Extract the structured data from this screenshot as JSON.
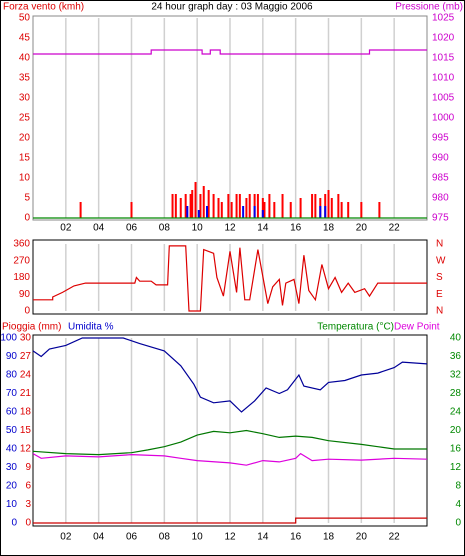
{
  "chart_data": [
    {
      "type": "bar",
      "title": "24 hour graph day : 03 Maggio 2006",
      "ylabel": "Forza vento (kmh)",
      "y2label": "Pressione (mb)",
      "xlim": [
        0,
        24
      ],
      "xticks": [
        {
          "value": 2,
          "label": "02"
        },
        {
          "value": 4,
          "label": "04"
        },
        {
          "value": 6,
          "label": "06"
        },
        {
          "value": 8,
          "label": "08"
        },
        {
          "value": 10,
          "label": "10"
        },
        {
          "value": 12,
          "label": "12"
        },
        {
          "value": 14,
          "label": "14"
        },
        {
          "value": 16,
          "label": "16"
        },
        {
          "value": 18,
          "label": "18"
        },
        {
          "value": 20,
          "label": "20"
        },
        {
          "value": 22,
          "label": "22"
        }
      ],
      "ylim": [
        0,
        50
      ],
      "yticks": [
        0,
        5,
        10,
        15,
        20,
        25,
        30,
        35,
        40,
        45,
        50
      ],
      "ycolor": "#dd0000",
      "y2lim": [
        975,
        1025
      ],
      "y2ticks": [
        975,
        980,
        985,
        990,
        995,
        1000,
        1005,
        1010,
        1015,
        1020,
        1025
      ],
      "y2color": "#cc00cc",
      "grid": true,
      "series": [
        {
          "type": "bar",
          "color": "#ff0000",
          "x": [
            2.9,
            6.0,
            8.5,
            8.7,
            9.0,
            9.3,
            9.6,
            9.7,
            9.9,
            10.2,
            10.4,
            10.7,
            11.0,
            11.3,
            11.5,
            11.9,
            12.1,
            12.4,
            12.6,
            13.0,
            13.2,
            13.5,
            13.7,
            14.0,
            14.1,
            14.4,
            14.7,
            15.2,
            15.7,
            16.3,
            17.0,
            17.2,
            17.5,
            17.8,
            18.0,
            18.2,
            18.6,
            18.8,
            19.2,
            20.0,
            21.1
          ],
          "values": [
            4,
            4,
            6,
            6,
            5,
            6,
            6,
            7,
            9,
            6,
            8,
            7,
            6,
            5,
            4,
            6,
            4,
            6,
            6,
            5,
            6,
            6,
            6,
            5,
            4,
            6,
            4,
            6,
            4,
            5,
            6,
            6,
            5,
            6,
            7,
            5,
            6,
            4,
            4,
            4,
            4
          ]
        },
        {
          "type": "bar",
          "color": "#0000ee",
          "x": [
            9.4,
            10.1,
            10.6,
            12.8,
            13.5,
            14.0,
            17.5,
            17.8
          ],
          "values": [
            3,
            2,
            3,
            3,
            3,
            2,
            3,
            3
          ]
        },
        {
          "type": "line",
          "color": "#008800",
          "x": [
            0,
            24
          ],
          "values": [
            0,
            0
          ]
        },
        {
          "type": "line",
          "color": "#cc00cc",
          "axis": "y2",
          "x": [
            0,
            7.2,
            7.2,
            10.3,
            10.3,
            10.8,
            10.8,
            11.4,
            11.4,
            20.5,
            20.5,
            24
          ],
          "values": [
            1016,
            1016,
            1017,
            1017,
            1016,
            1016,
            1017,
            1017,
            1016,
            1016,
            1017,
            1017
          ]
        }
      ]
    },
    {
      "type": "line",
      "xlim": [
        0,
        24
      ],
      "xticks": [
        2,
        4,
        6,
        8,
        10,
        12,
        14,
        16,
        18,
        20,
        22
      ],
      "ylim": [
        0,
        360
      ],
      "yticks": [
        0,
        90,
        180,
        270,
        360
      ],
      "ycolor": "#dd0000",
      "y2lim": [
        0,
        360
      ],
      "y2ticks": [
        {
          "value": 0,
          "label": "N"
        },
        {
          "value": 90,
          "label": "E"
        },
        {
          "value": 180,
          "label": "S"
        },
        {
          "value": 270,
          "label": "W"
        },
        {
          "value": 360,
          "label": "N"
        }
      ],
      "y2color": "#dd0000",
      "grid": true,
      "series": [
        {
          "color": "#dd0000",
          "x": [
            0,
            1.2,
            1.2,
            1.8,
            2.5,
            3.2,
            6.2,
            6.3,
            6.5,
            7.2,
            7.5,
            8.2,
            8.3,
            9.3,
            9.5,
            10.2,
            10.4,
            11.0,
            11.2,
            11.6,
            12.0,
            12.4,
            12.6,
            12.9,
            13.2,
            13.7,
            14.3,
            14.6,
            15.0,
            15.2,
            15.4,
            15.9,
            16.2,
            16.5,
            16.8,
            17.2,
            17.6,
            18.0,
            18.4,
            18.8,
            19.2,
            19.6,
            20.2,
            20.5,
            21.0,
            24
          ],
          "values": [
            60,
            60,
            75,
            100,
            135,
            150,
            150,
            180,
            160,
            160,
            140,
            140,
            350,
            350,
            0,
            0,
            330,
            310,
            180,
            80,
            320,
            100,
            340,
            60,
            60,
            330,
            40,
            130,
            170,
            30,
            150,
            170,
            40,
            300,
            110,
            60,
            250,
            120,
            180,
            100,
            150,
            100,
            120,
            80,
            150,
            150
          ]
        }
      ]
    },
    {
      "type": "line",
      "y3label": "Pioggia (mm)",
      "ylabel": "Umidita %",
      "y2label": "Temperatura (°C)",
      "y4label": "Dew Point",
      "xlim": [
        0,
        24
      ],
      "xticks": [
        {
          "value": 2,
          "label": "02"
        },
        {
          "value": 4,
          "label": "04"
        },
        {
          "value": 6,
          "label": "06"
        },
        {
          "value": 8,
          "label": "08"
        },
        {
          "value": 10,
          "label": "10"
        },
        {
          "value": 12,
          "label": "12"
        },
        {
          "value": 14,
          "label": "14"
        },
        {
          "value": 16,
          "label": "16"
        },
        {
          "value": 18,
          "label": "18"
        },
        {
          "value": 20,
          "label": "20"
        },
        {
          "value": 22,
          "label": "22"
        }
      ],
      "ylim": [
        0,
        100
      ],
      "yticks": [
        0,
        10,
        20,
        30,
        40,
        50,
        60,
        70,
        80,
        90,
        100
      ],
      "ycolor": "#0000cc",
      "y3lim": [
        0,
        30
      ],
      "y3ticks": [
        0,
        3,
        6,
        9,
        12,
        15,
        18,
        21,
        24,
        27,
        30
      ],
      "y3color": "#dd0000",
      "y2lim": [
        0,
        40
      ],
      "y2ticks": [
        0,
        4,
        8,
        12,
        16,
        20,
        24,
        28,
        32,
        36,
        40
      ],
      "y2color": "#008800",
      "grid": true,
      "series": [
        {
          "color": "#000099",
          "x": [
            0,
            0.5,
            1,
            2,
            3,
            5.5,
            6.5,
            8,
            9,
            9.8,
            10.2,
            11,
            12,
            12.7,
            13.5,
            14.2,
            15,
            15.5,
            16.2,
            16.5,
            17.5,
            18,
            19,
            20,
            21,
            22,
            22.5,
            24
          ],
          "values": [
            93,
            90,
            94,
            96,
            100,
            100,
            97,
            93,
            85,
            75,
            68,
            65,
            66,
            60,
            66,
            73,
            70,
            72,
            80,
            74,
            72,
            76,
            77,
            80,
            81,
            84,
            87,
            86
          ]
        },
        {
          "color": "#007700",
          "axis": "y2",
          "x": [
            0,
            2,
            4,
            6,
            7,
            8,
            9,
            10,
            11,
            12,
            13,
            14,
            15,
            16,
            17,
            18,
            20,
            21,
            22,
            24
          ],
          "values": [
            15.5,
            15,
            14.8,
            15.2,
            15.8,
            16.5,
            17.5,
            19,
            19.8,
            19.5,
            20,
            19.3,
            18.5,
            18.8,
            18.5,
            17.8,
            17,
            16.5,
            16,
            16
          ]
        },
        {
          "color": "#dd00dd",
          "axis": "y2",
          "x": [
            0,
            0.5,
            2,
            4,
            6,
            8,
            9,
            10,
            12,
            13,
            14,
            15,
            16,
            16.3,
            17,
            18,
            20,
            22,
            24
          ],
          "values": [
            15,
            14,
            14.5,
            14.3,
            14.8,
            14.5,
            14,
            13.5,
            13,
            12.5,
            13.5,
            13.2,
            14,
            15,
            13.5,
            13.8,
            13.6,
            14,
            13.8
          ]
        },
        {
          "color": "#cc0000",
          "axis": "y3",
          "x": [
            0,
            16,
            16,
            24
          ],
          "values": [
            0,
            0,
            0.8,
            0.8
          ]
        }
      ]
    }
  ]
}
